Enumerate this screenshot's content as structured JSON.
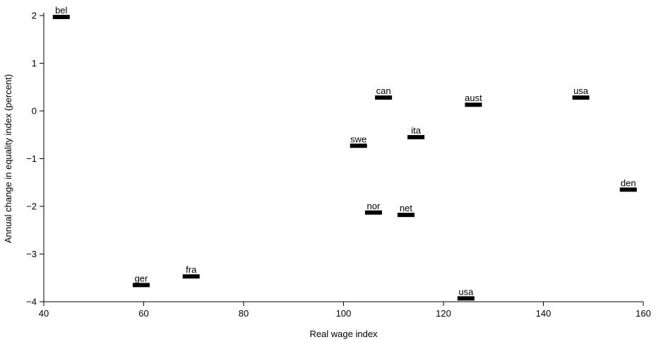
{
  "chart_data": {
    "type": "scatter",
    "title": "",
    "xlabel": "Real wage index",
    "ylabel": "Annual change in equality index (percent)",
    "xlim": [
      40,
      160
    ],
    "ylim": [
      -4,
      2
    ],
    "xticks": [
      40,
      60,
      80,
      100,
      120,
      140,
      160
    ],
    "yticks": [
      -4,
      -3,
      -2,
      -1,
      0,
      1,
      2
    ],
    "ytick_labels": [
      "−4",
      "−3",
      "−2",
      "−1",
      "0",
      "1",
      "2"
    ],
    "grid": false,
    "points": [
      {
        "label": "bel",
        "x": 43.5,
        "y": 1.97
      },
      {
        "label": "can",
        "x": 108,
        "y": 0.28
      },
      {
        "label": "aust",
        "x": 126,
        "y": 0.13
      },
      {
        "label": "usa",
        "x": 147.5,
        "y": 0.28
      },
      {
        "label": "ita",
        "x": 114.5,
        "y": -0.55
      },
      {
        "label": "swe",
        "x": 103,
        "y": -0.73
      },
      {
        "label": "den",
        "x": 157,
        "y": -1.65
      },
      {
        "label": "nor",
        "x": 106,
        "y": -2.13
      },
      {
        "label": "net",
        "x": 112.5,
        "y": -2.18
      },
      {
        "label": "ger",
        "x": 59.5,
        "y": -3.65
      },
      {
        "label": "fra",
        "x": 69.5,
        "y": -3.47
      },
      {
        "label": "usa",
        "x": 124.5,
        "y": -3.93
      }
    ]
  }
}
